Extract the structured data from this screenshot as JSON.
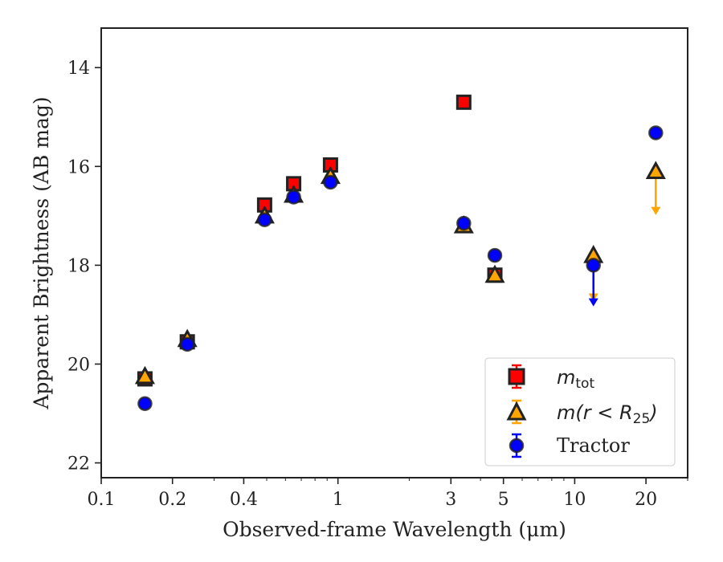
{
  "chart_data": {
    "type": "scatter",
    "title": "",
    "xlabel": "Observed-frame Wavelength (μm)",
    "ylabel": "Apparent Brightness (AB mag)",
    "xscale": "log",
    "xlim": [
      0.1,
      30
    ],
    "ylim": [
      22.3,
      13.2
    ],
    "y_inverted": true,
    "xticks": [
      {
        "value": 0.1,
        "label": "0.1"
      },
      {
        "value": 0.2,
        "label": "0.2"
      },
      {
        "value": 0.4,
        "label": "0.4"
      },
      {
        "value": 1,
        "label": "1"
      },
      {
        "value": 3,
        "label": "3"
      },
      {
        "value": 5,
        "label": "5"
      },
      {
        "value": 10,
        "label": "10"
      },
      {
        "value": 20,
        "label": "20"
      }
    ],
    "yticks": [
      {
        "value": 14,
        "label": "14"
      },
      {
        "value": 16,
        "label": "16"
      },
      {
        "value": 18,
        "label": "18"
      },
      {
        "value": 20,
        "label": "20"
      },
      {
        "value": 22,
        "label": "22"
      }
    ],
    "grid": false,
    "legend_position": "lower-right",
    "series": [
      {
        "name": "m_tot",
        "marker": "square",
        "color": "#ff0000",
        "points": [
          {
            "x": 0.153,
            "y": 20.3
          },
          {
            "x": 0.231,
            "y": 19.55
          },
          {
            "x": 0.49,
            "y": 16.78
          },
          {
            "x": 0.65,
            "y": 16.35
          },
          {
            "x": 0.93,
            "y": 15.97
          },
          {
            "x": 3.4,
            "y": 14.7
          },
          {
            "x": 4.6,
            "y": 18.2
          }
        ]
      },
      {
        "name": "m(r < R25)",
        "marker": "triangle",
        "color": "#ffa500",
        "points": [
          {
            "x": 0.153,
            "y": 20.25
          },
          {
            "x": 0.231,
            "y": 19.5
          },
          {
            "x": 0.49,
            "y": 17.0
          },
          {
            "x": 0.65,
            "y": 16.58
          },
          {
            "x": 0.93,
            "y": 16.2
          },
          {
            "x": 3.4,
            "y": 17.2
          },
          {
            "x": 4.6,
            "y": 18.2
          },
          {
            "x": 12.0,
            "y": 17.8,
            "upper_limit": true,
            "arrow_to": 18.7
          },
          {
            "x": 22.0,
            "y": 16.1,
            "upper_limit": true,
            "arrow_to": 16.95
          }
        ]
      },
      {
        "name": "Tractor",
        "marker": "circle",
        "color": "#0000ff",
        "points": [
          {
            "x": 0.153,
            "y": 20.8
          },
          {
            "x": 0.231,
            "y": 19.6
          },
          {
            "x": 0.49,
            "y": 17.08
          },
          {
            "x": 0.65,
            "y": 16.62
          },
          {
            "x": 0.93,
            "y": 16.32
          },
          {
            "x": 3.4,
            "y": 17.15
          },
          {
            "x": 4.6,
            "y": 17.8
          },
          {
            "x": 12.0,
            "y": 18.0,
            "upper_limit": true,
            "arrow_to": 18.8
          },
          {
            "x": 22.0,
            "y": 15.32
          }
        ]
      }
    ]
  }
}
